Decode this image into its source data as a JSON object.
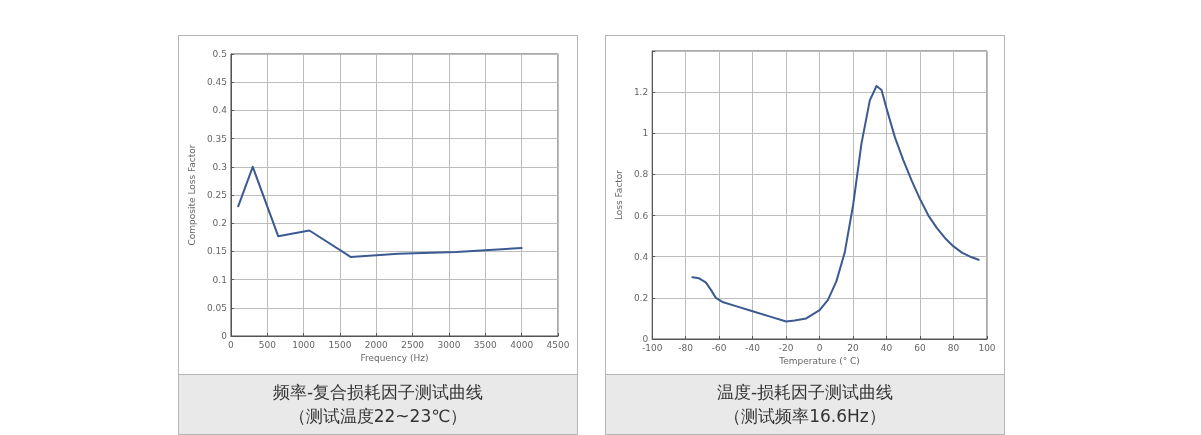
{
  "chart_data": [
    {
      "type": "line",
      "title": "频率-复合损耗因子测试曲线",
      "subtitle": "（测试温度22~23℃）",
      "xlabel": "Frequency (Hz)",
      "ylabel": "Composite Loss Factor",
      "x": [
        100,
        300,
        650,
        1080,
        1650,
        2300,
        3100,
        4000
      ],
      "series": [
        {
          "color": "#3c5a92",
          "values": [
            0.23,
            0.3,
            0.177,
            0.187,
            0.14,
            0.146,
            0.149,
            0.156
          ]
        }
      ],
      "xlim": [
        0,
        4500
      ],
      "xticks": [
        0,
        500,
        1000,
        1500,
        2000,
        2500,
        3000,
        3500,
        4000,
        4500
      ],
      "ylim": [
        0,
        0.5
      ],
      "yticks": [
        0,
        0.05,
        0.1,
        0.15,
        0.2,
        0.25,
        0.3,
        0.35,
        0.4,
        0.45,
        0.5
      ],
      "grid": true,
      "marker": "none",
      "line_style": "solid"
    },
    {
      "type": "line",
      "title": "温度-损耗因子测试曲线",
      "subtitle": "（测试频率16.6Hz）",
      "xlabel": "Temperature (° C)",
      "ylabel": "Loss Factor",
      "x": [
        -76,
        -72,
        -68,
        -65,
        -62,
        -58,
        -50,
        -40,
        -30,
        -20,
        -15,
        -8,
        0,
        5,
        10,
        15,
        20,
        25,
        30,
        34,
        37,
        40,
        45,
        50,
        55,
        60,
        65,
        70,
        75,
        80,
        85,
        90,
        95
      ],
      "series": [
        {
          "color": "#3c5a92",
          "values": [
            0.3,
            0.295,
            0.275,
            0.24,
            0.2,
            0.18,
            0.16,
            0.135,
            0.11,
            0.085,
            0.09,
            0.1,
            0.14,
            0.19,
            0.28,
            0.42,
            0.65,
            0.95,
            1.16,
            1.23,
            1.21,
            1.12,
            0.98,
            0.87,
            0.77,
            0.68,
            0.6,
            0.54,
            0.49,
            0.45,
            0.42,
            0.4,
            0.385
          ]
        }
      ],
      "xlim": [
        -100,
        100
      ],
      "xticks": [
        -100,
        -80,
        -60,
        -40,
        -20,
        0,
        20,
        40,
        60,
        80,
        100
      ],
      "ylim": [
        0,
        1.4
      ],
      "yticks": [
        0,
        0.2,
        0.4,
        0.6,
        0.8,
        1,
        1.2
      ],
      "grid": true,
      "marker": "none",
      "line_style": "solid"
    }
  ]
}
